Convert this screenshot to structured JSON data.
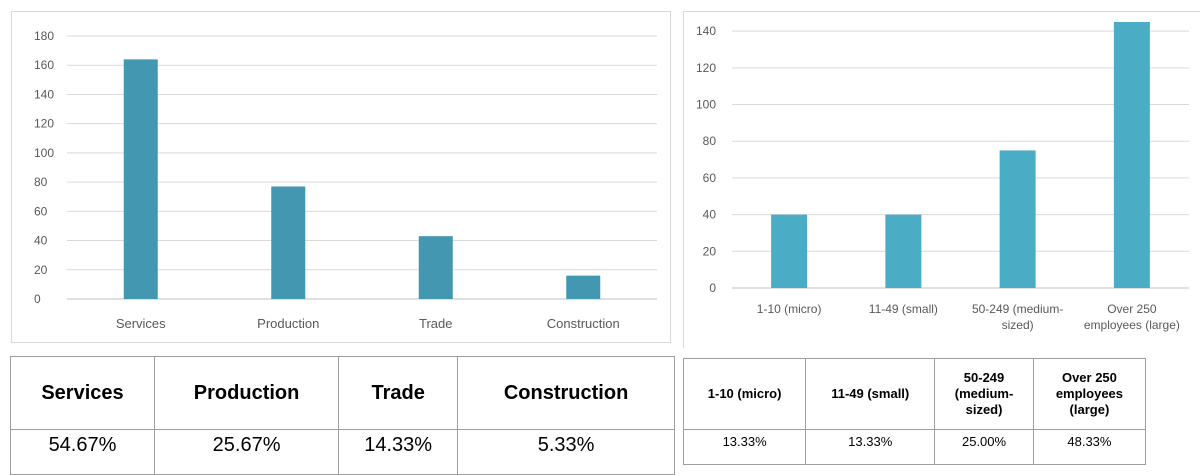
{
  "chart_data": [
    {
      "type": "bar",
      "categories": [
        "Services",
        "Production",
        "Trade",
        "Construction"
      ],
      "values": [
        164,
        77,
        43,
        16
      ],
      "ylim": [
        0,
        180
      ],
      "yticks": [
        "0",
        "20",
        "40",
        "60",
        "80",
        "100",
        "120",
        "140",
        "160",
        "180"
      ],
      "grid": true,
      "color": "#4497b0"
    },
    {
      "type": "bar",
      "categories": [
        "1-10 (micro)",
        "11-49 (small)",
        "50-249 (medium-sized)",
        "Over 250 employees (large)"
      ],
      "category_lines": [
        [
          "1-10 (micro)"
        ],
        [
          "11-49 (small)"
        ],
        [
          "50-249 (medium-",
          "sized)"
        ],
        [
          "Over 250",
          "employees (large)"
        ]
      ],
      "values": [
        40,
        40,
        75,
        145
      ],
      "ylim": [
        0,
        145
      ],
      "yticks": [
        "0",
        "20",
        "40",
        "60",
        "80",
        "100",
        "120",
        "140"
      ],
      "grid": true,
      "color": "#4bacc6"
    }
  ],
  "table_sector": {
    "headers": [
      "Services",
      "Production",
      "Trade",
      "Construction"
    ],
    "values": [
      "54.67%",
      "25.67%",
      "14.33%",
      "5.33%"
    ]
  },
  "table_size": {
    "headers": [
      [
        "1-10 (micro)"
      ],
      [
        "11-49 (small)"
      ],
      [
        "50-249",
        "(medium-",
        "sized)"
      ],
      [
        "Over 250",
        "employees",
        "(large)"
      ]
    ],
    "values": [
      "13.33%",
      "13.33%",
      "25.00%",
      "48.33%"
    ]
  }
}
